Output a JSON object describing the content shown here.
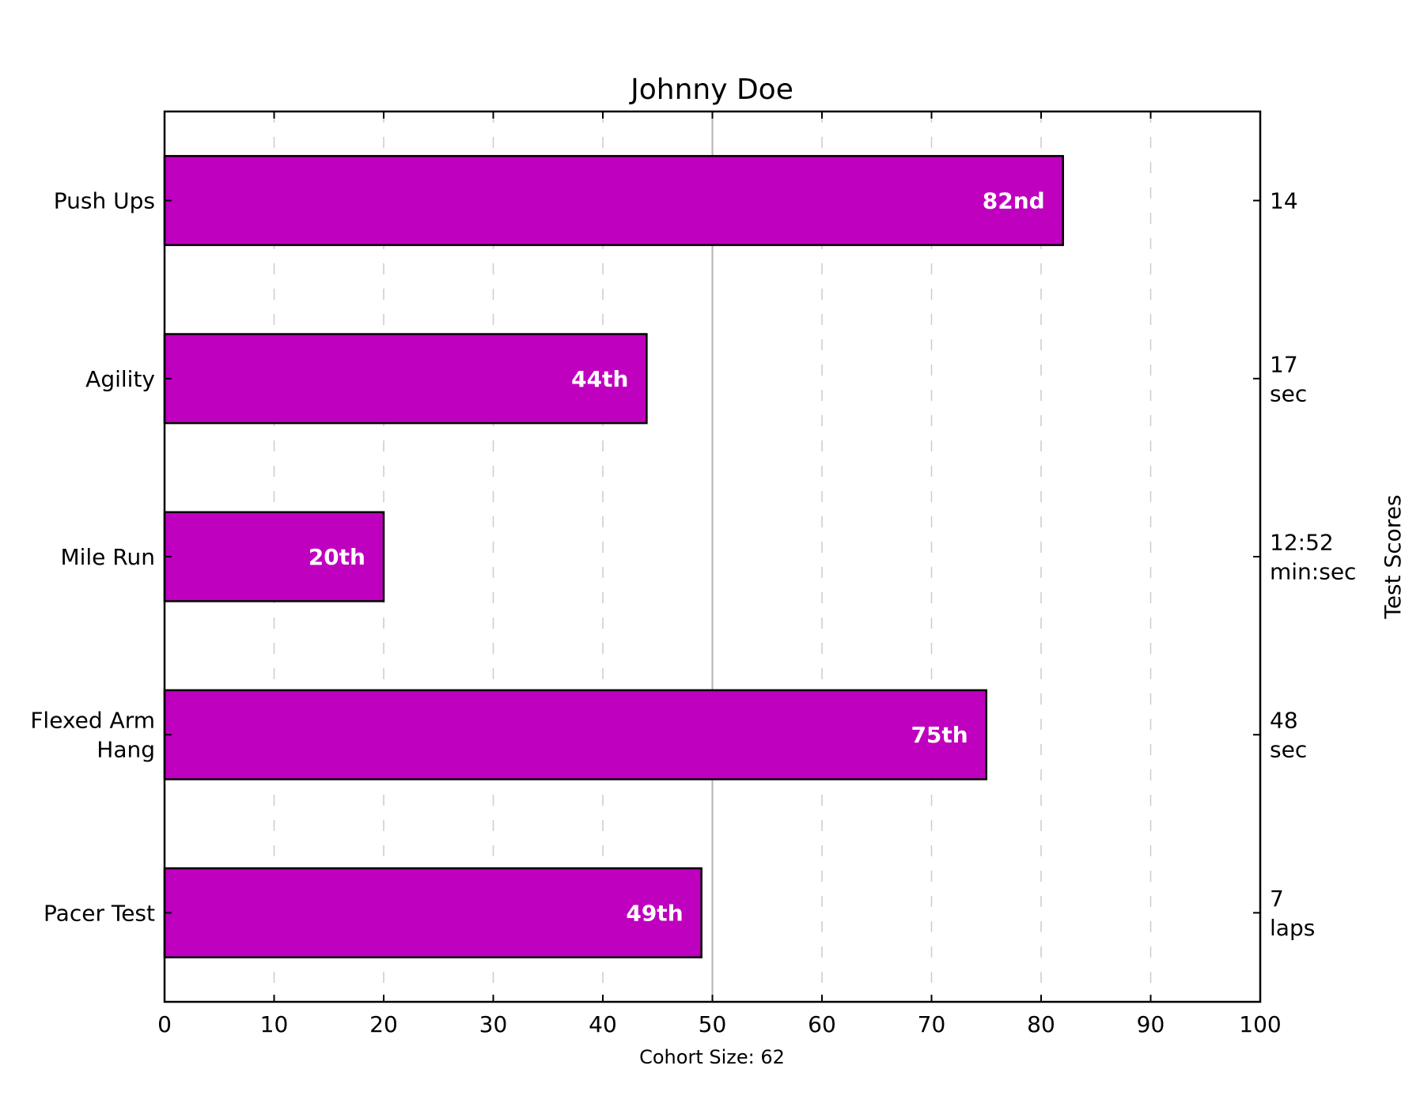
{
  "chart_data": {
    "type": "bar",
    "orientation": "horizontal",
    "title": "Johnny Doe",
    "categories": [
      "Push Ups",
      "Agility",
      "Mile Run",
      "Flexed Arm Hang",
      "Pacer Test"
    ],
    "category_label_lines": [
      [
        "Push Ups"
      ],
      [
        "Agility"
      ],
      [
        "Mile Run"
      ],
      [
        "Flexed Arm",
        "Hang"
      ],
      [
        "Pacer Test"
      ]
    ],
    "values": [
      82,
      44,
      20,
      75,
      49
    ],
    "bar_labels": [
      "82nd",
      "44th",
      "20th",
      "75th",
      "49th"
    ],
    "test_scores": [
      [
        "14"
      ],
      [
        "17",
        "sec"
      ],
      [
        "12:52",
        "min:sec"
      ],
      [
        "48",
        "sec"
      ],
      [
        "7",
        "laps"
      ]
    ],
    "xlim": [
      0,
      100
    ],
    "xticks": [
      0,
      10,
      20,
      30,
      40,
      50,
      60,
      70,
      80,
      90,
      100
    ],
    "xlabel": "Cohort Size: 62",
    "right_ylabel": "Test Scores",
    "grid": "vertical dashed",
    "median_line": 50,
    "colors": {
      "bar": "#bf00bf",
      "bar_edge": "#000000",
      "grid": "#cccccc",
      "median": "#b3b3b3"
    }
  }
}
